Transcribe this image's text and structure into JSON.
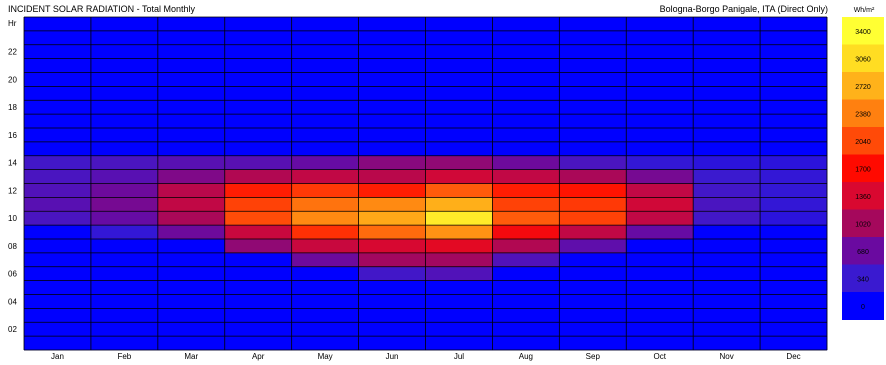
{
  "chart_data": {
    "type": "heatmap",
    "title": "INCIDENT SOLAR RADIATION - Total Monthly",
    "subtitle": "Bologna-Borgo Panigale, ITA (Direct Only)",
    "ylabel": "Hr",
    "units": "Wh/m²",
    "x": [
      "Jan",
      "Feb",
      "Mar",
      "Apr",
      "May",
      "Jun",
      "Jul",
      "Aug",
      "Sep",
      "Oct",
      "Nov",
      "Dec"
    ],
    "y_ticks": [
      "22",
      "20",
      "18",
      "16",
      "14",
      "12",
      "10",
      "08",
      "06",
      "04",
      "02"
    ],
    "hours": [
      1,
      2,
      3,
      4,
      5,
      6,
      7,
      8,
      9,
      10,
      11,
      12,
      13,
      14,
      15,
      16,
      17,
      18,
      19,
      20,
      21,
      22,
      23,
      24
    ],
    "values_hours_1_to_24": [
      [
        0,
        0,
        0,
        0,
        0,
        0,
        0,
        0,
        0,
        0,
        0,
        0
      ],
      [
        0,
        0,
        0,
        0,
        0,
        0,
        0,
        0,
        0,
        0,
        0,
        0
      ],
      [
        0,
        0,
        0,
        0,
        0,
        0,
        0,
        0,
        0,
        0,
        0,
        0
      ],
      [
        0,
        0,
        0,
        0,
        0,
        0,
        0,
        0,
        0,
        0,
        0,
        0
      ],
      [
        0,
        0,
        0,
        0,
        0,
        0,
        0,
        0,
        0,
        0,
        0,
        0
      ],
      [
        0,
        0,
        0,
        0,
        0,
        400,
        500,
        0,
        0,
        0,
        0,
        0
      ],
      [
        0,
        0,
        0,
        0,
        700,
        1000,
        1000,
        500,
        0,
        0,
        0,
        0
      ],
      [
        0,
        0,
        0,
        900,
        1250,
        1350,
        1450,
        1100,
        600,
        0,
        0,
        0
      ],
      [
        0,
        300,
        700,
        1250,
        1900,
        2250,
        2500,
        1600,
        1200,
        650,
        0,
        0
      ],
      [
        450,
        650,
        1050,
        2050,
        2450,
        2650,
        3200,
        2150,
        2000,
        1200,
        400,
        250
      ],
      [
        550,
        750,
        1200,
        2000,
        2300,
        2450,
        2700,
        2000,
        1950,
        1300,
        450,
        300
      ],
      [
        500,
        700,
        1150,
        1800,
        1950,
        1800,
        2150,
        1800,
        1750,
        1200,
        400,
        300
      ],
      [
        450,
        550,
        800,
        1100,
        1200,
        1150,
        1300,
        1200,
        1050,
        750,
        350,
        300
      ],
      [
        400,
        450,
        550,
        550,
        650,
        850,
        900,
        700,
        450,
        300,
        250,
        250
      ],
      [
        0,
        0,
        0,
        0,
        0,
        0,
        0,
        0,
        0,
        0,
        0,
        0
      ],
      [
        0,
        0,
        0,
        0,
        0,
        0,
        0,
        0,
        0,
        0,
        0,
        0
      ],
      [
        0,
        0,
        0,
        0,
        0,
        0,
        0,
        0,
        0,
        0,
        0,
        0
      ],
      [
        0,
        0,
        0,
        0,
        0,
        0,
        0,
        0,
        0,
        0,
        0,
        0
      ],
      [
        0,
        0,
        0,
        0,
        0,
        0,
        0,
        0,
        0,
        0,
        0,
        0
      ],
      [
        0,
        0,
        0,
        0,
        0,
        0,
        0,
        0,
        0,
        0,
        0,
        0
      ],
      [
        0,
        0,
        0,
        0,
        0,
        0,
        0,
        0,
        0,
        0,
        0,
        0
      ],
      [
        0,
        0,
        0,
        0,
        0,
        0,
        0,
        0,
        0,
        0,
        0,
        0
      ],
      [
        0,
        0,
        0,
        0,
        0,
        0,
        0,
        0,
        0,
        0,
        0,
        0
      ],
      [
        0,
        0,
        0,
        0,
        0,
        0,
        0,
        0,
        0,
        0,
        0,
        0
      ]
    ],
    "scale": {
      "labels": [
        "3400",
        "3060",
        "2720",
        "2380",
        "2040",
        "1700",
        "1360",
        "1020",
        "680",
        "340",
        "0"
      ],
      "colors": [
        "#ffff33",
        "#ffdd22",
        "#ffb21a",
        "#ff8010",
        "#ff4a08",
        "#ff0a00",
        "#d90830",
        "#a5085c",
        "#6a0aa0",
        "#3a1ad0",
        "#0000ff"
      ]
    },
    "legend": "right",
    "grid": true
  }
}
